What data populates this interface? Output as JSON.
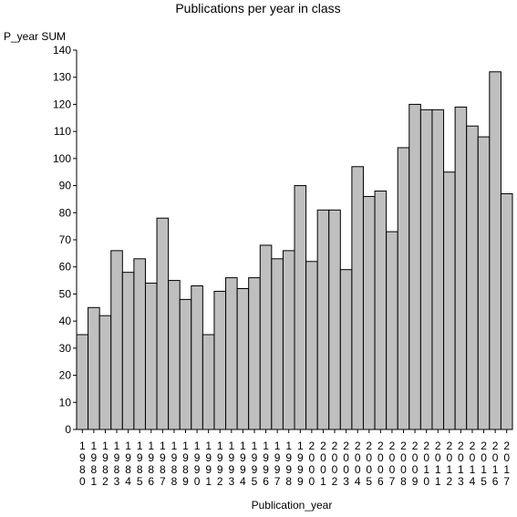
{
  "chart_data": {
    "type": "bar",
    "title": "Publications per year in class",
    "xlabel": "Publication_year",
    "ylabel": "P_year SUM",
    "ylim": [
      0,
      140
    ],
    "yticks": [
      0,
      10,
      20,
      30,
      40,
      50,
      60,
      70,
      80,
      90,
      100,
      110,
      120,
      130,
      140
    ],
    "grid": false,
    "categories": [
      "1980",
      "1981",
      "1982",
      "1983",
      "1984",
      "1985",
      "1986",
      "1987",
      "1988",
      "1989",
      "1990",
      "1991",
      "1992",
      "1993",
      "1994",
      "1995",
      "1996",
      "1997",
      "1998",
      "1999",
      "2000",
      "2001",
      "2002",
      "2003",
      "2004",
      "2005",
      "2006",
      "2007",
      "2008",
      "2009",
      "2010",
      "2011",
      "2012",
      "2013",
      "2014",
      "2015",
      "2016",
      "2017"
    ],
    "values": [
      35,
      45,
      42,
      66,
      58,
      63,
      54,
      78,
      55,
      48,
      53,
      35,
      51,
      56,
      52,
      56,
      68,
      63,
      66,
      90,
      62,
      81,
      81,
      59,
      97,
      86,
      88,
      73,
      104,
      120,
      118,
      118,
      95,
      119,
      112,
      108,
      132,
      87
    ],
    "colors": {
      "bar_fill": "#bfbfbf",
      "bar_stroke": "#000000",
      "axis": "#000000"
    }
  }
}
